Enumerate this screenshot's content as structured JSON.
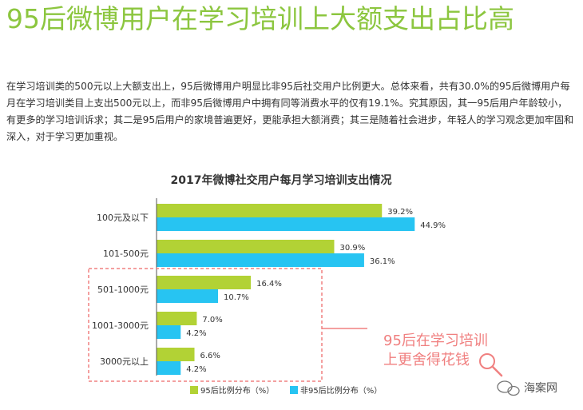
{
  "headline": "95后微博用户在学习培训上大额支出占比高",
  "paragraph": "在学习培训类的500元以上大额支出上，95后微博用户明显比非95后社交用户比例更大。总体来看，共有30.0%的95后微博用户每月在学习培训类目上支出500元以上，而非95后微博用户中拥有同等消费水平的仅有19.1%。究其原因，其一95后用户年龄较小，有更多的学习培训诉求；其二是95后用户的家境普遍更好，更能承担大额消费；其三是随着社会进步，年轻人的学习观念更加牢固和深入，对于学习更加重视。",
  "chart_data": {
    "type": "bar",
    "orientation": "horizontal",
    "title": "2017年微博社交用户每月学习培训支出情况",
    "categories": [
      "100元及以下",
      "101-500元",
      "501-1000元",
      "1001-3000元",
      "3000元以上"
    ],
    "series": [
      {
        "name": "95后比例分布（%）",
        "color": "#b2d235",
        "values": [
          39.2,
          30.9,
          16.4,
          7.0,
          6.6
        ]
      },
      {
        "name": "非95后比例分布（%）",
        "color": "#27c4f2",
        "values": [
          44.9,
          36.1,
          10.7,
          4.2,
          4.2
        ]
      }
    ],
    "value_suffix": "%",
    "xlim": [
      0,
      50
    ],
    "grid": false,
    "legend_position": "bottom",
    "annotation": {
      "lines": [
        "95后在学习培训",
        "上更舍得花钱"
      ],
      "color": "#f08080",
      "highlighted_categories": [
        "501-1000元",
        "1001-3000元",
        "3000元以上"
      ]
    }
  },
  "watermark": "海案网"
}
